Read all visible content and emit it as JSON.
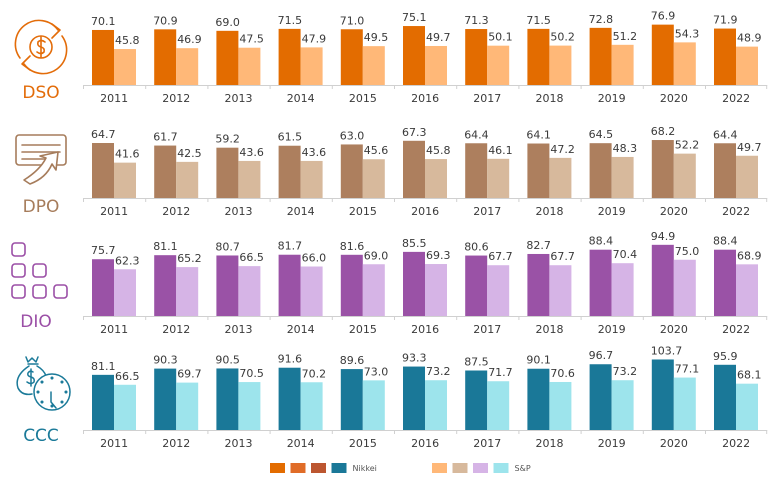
{
  "chart_data": {
    "type": "bar",
    "categories": [
      "2011",
      "2012",
      "2013",
      "2014",
      "2015",
      "2016",
      "2017",
      "2018",
      "2019",
      "2020",
      "2022"
    ],
    "panels": [
      {
        "metric": "DSO",
        "icon": "money-cycle-icon",
        "label_color": "#e36c09",
        "colors": {
          "nikkei": "#e36c00",
          "sp": "#ffb878"
        },
        "series": [
          {
            "name": "Nikkei",
            "values": [
              70.1,
              70.9,
              69.0,
              71.5,
              71.0,
              75.1,
              71.3,
              71.5,
              72.8,
              76.9,
              71.9
            ]
          },
          {
            "name": "S&P",
            "values": [
              45.8,
              46.9,
              47.5,
              47.9,
              49.5,
              49.7,
              50.1,
              50.2,
              51.2,
              54.3,
              48.9
            ]
          }
        ]
      },
      {
        "metric": "DPO",
        "icon": "payment-outgoing-icon",
        "label_color": "#a67c5b",
        "colors": {
          "nikkei": "#ad7f5e",
          "sp": "#d7b99c"
        },
        "series": [
          {
            "name": "Nikkei",
            "values": [
              64.7,
              61.7,
              59.2,
              61.5,
              63.0,
              67.3,
              64.4,
              64.1,
              64.5,
              68.2,
              64.4
            ]
          },
          {
            "name": "S&P",
            "values": [
              41.6,
              42.5,
              43.6,
              43.6,
              45.6,
              45.8,
              46.1,
              47.2,
              48.3,
              52.2,
              49.7
            ]
          }
        ]
      },
      {
        "metric": "DIO",
        "icon": "inventory-blocks-icon",
        "label_color": "#9b4fa6",
        "colors": {
          "nikkei": "#9a52a6",
          "sp": "#d6b4e6"
        },
        "series": [
          {
            "name": "Nikkei",
            "values": [
              75.7,
              81.1,
              80.7,
              81.7,
              81.6,
              85.5,
              80.6,
              82.7,
              88.4,
              94.9,
              88.4
            ]
          },
          {
            "name": "S&P",
            "values": [
              62.3,
              65.2,
              66.5,
              66.0,
              69.0,
              69.3,
              67.7,
              67.7,
              70.4,
              75.0,
              68.9
            ]
          }
        ]
      },
      {
        "metric": "CCC",
        "icon": "money-bag-clock-icon",
        "label_color": "#1b7a99",
        "colors": {
          "nikkei": "#1a7898",
          "sp": "#9de4ec"
        },
        "series": [
          {
            "name": "Nikkei",
            "values": [
              81.1,
              90.3,
              90.5,
              91.6,
              89.6,
              93.3,
              87.5,
              90.1,
              96.7,
              103.7,
              95.9
            ]
          },
          {
            "name": "S&P",
            "values": [
              66.5,
              69.7,
              70.5,
              70.2,
              73.0,
              73.2,
              71.7,
              70.6,
              73.2,
              77.1,
              68.1
            ]
          }
        ]
      }
    ],
    "legend": {
      "placement": "bottom-center",
      "entries": [
        {
          "label": "Nikkei",
          "swatches": [
            "#e36c00",
            "#e06c28",
            "#bc5630",
            "#1a7898"
          ]
        },
        {
          "label": "S&P",
          "swatches": [
            "#ffb878",
            "#d7b99c",
            "#d6b4e6",
            "#9de4ec"
          ]
        }
      ]
    }
  }
}
